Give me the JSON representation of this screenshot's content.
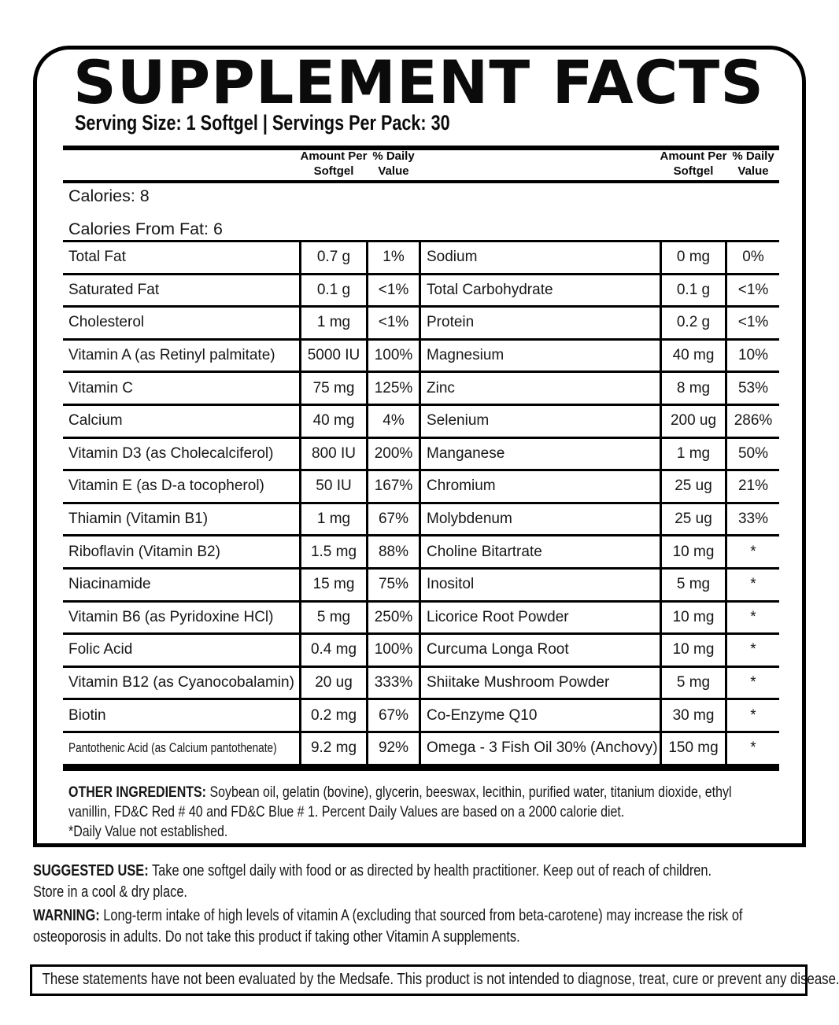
{
  "title": "SUPPLEMENT FACTS",
  "serving_line": "Serving Size: 1 Softgel | Servings Per Pack: 30",
  "columns": {
    "amount_header": "Amount Per\nSoftgel",
    "daily_header": "% Daily\nValue"
  },
  "calories": {
    "calories": "Calories: 8",
    "calories_from_fat": "Calories From Fat: 6"
  },
  "rows": [
    {
      "left": {
        "name": "Total Fat",
        "amount": "0.7 g",
        "dv": "1%"
      },
      "right": {
        "name": "Sodium",
        "amount": "0 mg",
        "dv": "0%"
      }
    },
    {
      "left": {
        "name": "Saturated Fat",
        "amount": "0.1 g",
        "dv": "<1%"
      },
      "right": {
        "name": "Total Carbohydrate",
        "amount": "0.1 g",
        "dv": "<1%"
      }
    },
    {
      "left": {
        "name": "Cholesterol",
        "amount": "1 mg",
        "dv": "<1%"
      },
      "right": {
        "name": "Protein",
        "amount": "0.2 g",
        "dv": "<1%"
      }
    },
    {
      "left": {
        "name": "Vitamin A (as Retinyl palmitate)",
        "amount": "5000 IU",
        "dv": "100%"
      },
      "right": {
        "name": "Magnesium",
        "amount": "40 mg",
        "dv": "10%"
      }
    },
    {
      "left": {
        "name": "Vitamin C",
        "amount": "75 mg",
        "dv": "125%"
      },
      "right": {
        "name": "Zinc",
        "amount": "8 mg",
        "dv": "53%"
      }
    },
    {
      "left": {
        "name": "Calcium",
        "amount": "40 mg",
        "dv": "4%"
      },
      "right": {
        "name": "Selenium",
        "amount": "200 ug",
        "dv": "286%"
      }
    },
    {
      "left": {
        "name": "Vitamin D3 (as Cholecalciferol)",
        "amount": "800 IU",
        "dv": "200%"
      },
      "right": {
        "name": "Manganese",
        "amount": "1 mg",
        "dv": "50%"
      }
    },
    {
      "left": {
        "name": "Vitamin E (as D-a tocopherol)",
        "amount": "50 IU",
        "dv": "167%"
      },
      "right": {
        "name": "Chromium",
        "amount": "25 ug",
        "dv": "21%"
      }
    },
    {
      "left": {
        "name": "Thiamin (Vitamin B1)",
        "amount": "1 mg",
        "dv": "67%"
      },
      "right": {
        "name": "Molybdenum",
        "amount": "25 ug",
        "dv": "33%"
      }
    },
    {
      "left": {
        "name": "Riboflavin (Vitamin B2)",
        "amount": "1.5 mg",
        "dv": "88%"
      },
      "right": {
        "name": "Choline Bitartrate",
        "amount": "10 mg",
        "dv": "*"
      }
    },
    {
      "left": {
        "name": "Niacinamide",
        "amount": "15 mg",
        "dv": "75%"
      },
      "right": {
        "name": "Inositol",
        "amount": "5 mg",
        "dv": "*"
      }
    },
    {
      "left": {
        "name": "Vitamin B6 (as Pyridoxine HCl)",
        "amount": "5 mg",
        "dv": "250%"
      },
      "right": {
        "name": "Licorice Root Powder",
        "amount": "10 mg",
        "dv": "*"
      }
    },
    {
      "left": {
        "name": "Folic Acid",
        "amount": "0.4 mg",
        "dv": "100%"
      },
      "right": {
        "name": "Curcuma Longa Root",
        "amount": "10 mg",
        "dv": "*"
      }
    },
    {
      "left": {
        "name": "Vitamin B12 (as Cyanocobalamin)",
        "amount": "20 ug",
        "dv": "333%"
      },
      "right": {
        "name": "Shiitake Mushroom Powder",
        "amount": "5 mg",
        "dv": "*"
      }
    },
    {
      "left": {
        "name": "Biotin",
        "amount": "0.2 mg",
        "dv": "67%"
      },
      "right": {
        "name": "Co-Enzyme Q10",
        "amount": "30 mg",
        "dv": "*"
      }
    },
    {
      "left": {
        "name": "Pantothenic Acid (as Calcium pantothenate)",
        "amount": "9.2 mg",
        "dv": "92%"
      },
      "right": {
        "name": "Omega - 3 Fish Oil 30% (Anchovy)",
        "amount": "150 mg",
        "dv": "*"
      }
    }
  ],
  "other_ingredients": {
    "label": "OTHER INGREDIENTS:",
    "text": "Soybean oil, gelatin (bovine), glycerin, beeswax, lecithin, purified water, titanium dioxide, ethyl\nvanillin, FD&C Red # 40 and FD&C Blue # 1. Percent Daily Values are based on a 2000 calorie diet.",
    "footnote": "*Daily Value not established."
  },
  "suggested_use": {
    "label": "SUGGESTED USE:",
    "text": "Take one softgel daily with food or as directed by health practitioner. Keep out of reach of children.\n Store in a cool & dry place."
  },
  "warning": {
    "label": "WARNING:",
    "text": "Long-term intake of high levels of vitamin A (excluding that sourced from beta-carotene) may increase the risk of\nosteoporosis in adults. Do not take this product if taking other Vitamin A supplements."
  },
  "disclaimer": "These statements have not been evaluated by the Medsafe. This product is not intended to diagnose, treat, cure or prevent any disease.",
  "colors": {
    "text": "#111111",
    "background": "#ffffff",
    "border": "#000000"
  }
}
